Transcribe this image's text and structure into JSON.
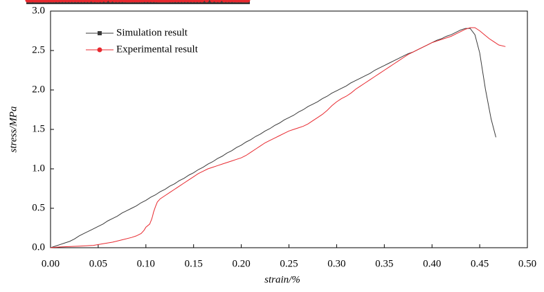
{
  "chart_data": {
    "type": "line",
    "xlabel": "strain/%",
    "ylabel": "stress/MPa",
    "xlim": [
      0,
      0.5
    ],
    "ylim": [
      0,
      3
    ],
    "xticks": [
      {
        "value": 0,
        "label": "0.00"
      },
      {
        "value": 0.05,
        "label": "0.05"
      },
      {
        "value": 0.1,
        "label": "0.10"
      },
      {
        "value": 0.15,
        "label": "0.15"
      },
      {
        "value": 0.2,
        "label": "0.20"
      },
      {
        "value": 0.25,
        "label": "0.25"
      },
      {
        "value": 0.3,
        "label": "0.30"
      },
      {
        "value": 0.35,
        "label": "0.35"
      },
      {
        "value": 0.4,
        "label": "0.40"
      },
      {
        "value": 0.45,
        "label": "0.45"
      },
      {
        "value": 0.5,
        "label": "0.50"
      }
    ],
    "yticks": [
      {
        "value": 0,
        "label": "0.0"
      },
      {
        "value": 0.5,
        "label": "0.5"
      },
      {
        "value": 1,
        "label": "1.0"
      },
      {
        "value": 1.5,
        "label": "1.5"
      },
      {
        "value": 2,
        "label": "2.0"
      },
      {
        "value": 2.5,
        "label": "2.5"
      },
      {
        "value": 3,
        "label": "3.0"
      }
    ],
    "legend": "upper-left",
    "series": [
      {
        "name": "Simulation result",
        "color": "#3a3a3a",
        "marker": "square",
        "x": [
          0,
          0.005,
          0.01,
          0.015,
          0.02,
          0.025,
          0.03,
          0.035,
          0.04,
          0.045,
          0.05,
          0.055,
          0.06,
          0.065,
          0.07,
          0.075,
          0.08,
          0.085,
          0.09,
          0.095,
          0.1,
          0.105,
          0.11,
          0.115,
          0.12,
          0.125,
          0.13,
          0.135,
          0.14,
          0.145,
          0.15,
          0.155,
          0.16,
          0.165,
          0.17,
          0.175,
          0.18,
          0.185,
          0.19,
          0.195,
          0.2,
          0.205,
          0.21,
          0.215,
          0.22,
          0.225,
          0.23,
          0.235,
          0.24,
          0.245,
          0.25,
          0.255,
          0.26,
          0.265,
          0.27,
          0.275,
          0.28,
          0.285,
          0.29,
          0.295,
          0.3,
          0.305,
          0.31,
          0.315,
          0.32,
          0.325,
          0.33,
          0.335,
          0.34,
          0.345,
          0.35,
          0.355,
          0.36,
          0.365,
          0.37,
          0.375,
          0.38,
          0.385,
          0.39,
          0.395,
          0.4,
          0.405,
          0.41,
          0.415,
          0.42,
          0.425,
          0.43,
          0.435,
          0.44,
          0.445,
          0.45,
          0.456,
          0.462,
          0.467
        ],
        "values": [
          0,
          0.02,
          0.04,
          0.06,
          0.08,
          0.11,
          0.15,
          0.18,
          0.21,
          0.24,
          0.27,
          0.3,
          0.34,
          0.37,
          0.4,
          0.44,
          0.47,
          0.5,
          0.53,
          0.57,
          0.6,
          0.64,
          0.67,
          0.71,
          0.74,
          0.78,
          0.81,
          0.85,
          0.88,
          0.92,
          0.95,
          0.99,
          1.02,
          1.06,
          1.09,
          1.13,
          1.16,
          1.2,
          1.23,
          1.27,
          1.3,
          1.34,
          1.37,
          1.41,
          1.44,
          1.48,
          1.51,
          1.55,
          1.58,
          1.62,
          1.65,
          1.68,
          1.72,
          1.75,
          1.79,
          1.82,
          1.85,
          1.89,
          1.92,
          1.96,
          1.99,
          2.02,
          2.05,
          2.09,
          2.12,
          2.15,
          2.18,
          2.21,
          2.25,
          2.28,
          2.31,
          2.34,
          2.37,
          2.4,
          2.43,
          2.46,
          2.48,
          2.51,
          2.54,
          2.57,
          2.6,
          2.63,
          2.65,
          2.68,
          2.7,
          2.73,
          2.76,
          2.78,
          2.78,
          2.7,
          2.47,
          2.01,
          1.63,
          1.4
        ]
      },
      {
        "name": "Experimental result",
        "color": "#e8292f",
        "marker": "circle",
        "x": [
          0,
          0.01,
          0.03,
          0.045,
          0.055,
          0.065,
          0.075,
          0.085,
          0.09,
          0.095,
          0.098,
          0.1,
          0.104,
          0.106,
          0.107,
          0.108,
          0.11,
          0.112,
          0.115,
          0.12,
          0.125,
          0.13,
          0.135,
          0.14,
          0.145,
          0.15,
          0.155,
          0.16,
          0.165,
          0.17,
          0.175,
          0.18,
          0.185,
          0.19,
          0.195,
          0.2,
          0.205,
          0.21,
          0.215,
          0.22,
          0.225,
          0.23,
          0.235,
          0.24,
          0.245,
          0.25,
          0.255,
          0.26,
          0.265,
          0.27,
          0.275,
          0.28,
          0.285,
          0.29,
          0.295,
          0.3,
          0.305,
          0.31,
          0.315,
          0.32,
          0.325,
          0.33,
          0.335,
          0.34,
          0.345,
          0.35,
          0.355,
          0.36,
          0.365,
          0.37,
          0.375,
          0.38,
          0.385,
          0.39,
          0.395,
          0.4,
          0.405,
          0.41,
          0.415,
          0.42,
          0.425,
          0.43,
          0.435,
          0.44,
          0.445,
          0.45,
          0.455,
          0.46,
          0.465,
          0.47,
          0.477
        ],
        "values": [
          0,
          0.01,
          0.02,
          0.03,
          0.05,
          0.07,
          0.1,
          0.13,
          0.15,
          0.18,
          0.22,
          0.26,
          0.3,
          0.36,
          0.4,
          0.45,
          0.52,
          0.58,
          0.62,
          0.66,
          0.7,
          0.74,
          0.78,
          0.82,
          0.86,
          0.9,
          0.94,
          0.97,
          1,
          1.02,
          1.04,
          1.06,
          1.08,
          1.1,
          1.12,
          1.14,
          1.17,
          1.21,
          1.25,
          1.29,
          1.33,
          1.36,
          1.39,
          1.42,
          1.45,
          1.48,
          1.5,
          1.52,
          1.54,
          1.57,
          1.61,
          1.65,
          1.69,
          1.74,
          1.8,
          1.85,
          1.89,
          1.92,
          1.96,
          2.01,
          2.05,
          2.09,
          2.13,
          2.17,
          2.21,
          2.25,
          2.29,
          2.33,
          2.37,
          2.41,
          2.45,
          2.48,
          2.51,
          2.54,
          2.57,
          2.6,
          2.62,
          2.64,
          2.66,
          2.68,
          2.71,
          2.74,
          2.77,
          2.79,
          2.79,
          2.75,
          2.7,
          2.65,
          2.61,
          2.57,
          2.55
        ]
      }
    ]
  }
}
